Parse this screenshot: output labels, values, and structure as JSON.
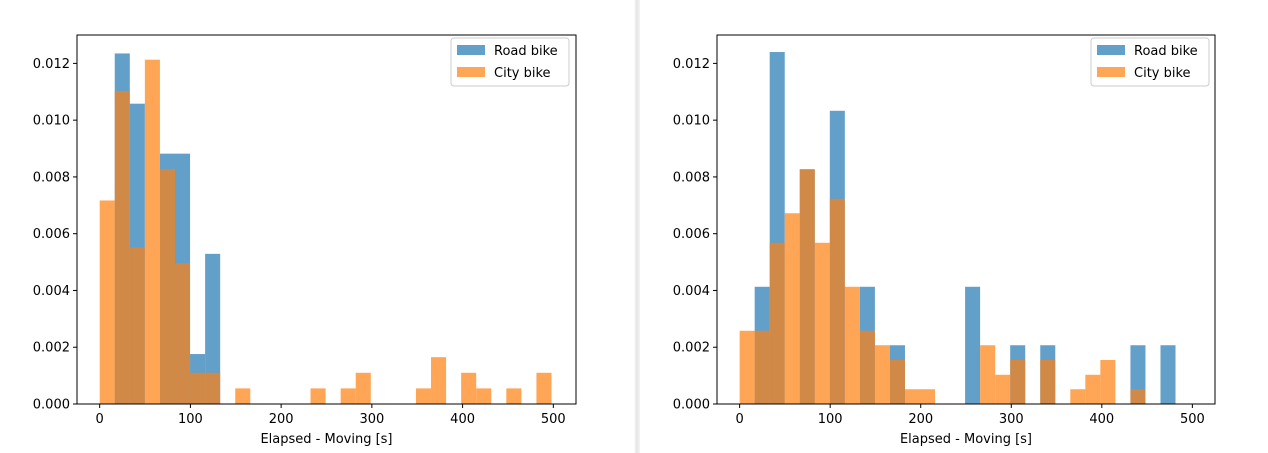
{
  "chart_data": [
    {
      "type": "bar",
      "kind": "histogram",
      "xlabel": "Elapsed - Moving [s]",
      "ylabel": "",
      "xlim": [
        -25,
        525
      ],
      "ylim": [
        0,
        0.013
      ],
      "xticks": [
        0,
        100,
        200,
        300,
        400,
        500
      ],
      "yticks": [
        0.0,
        0.002,
        0.004,
        0.006,
        0.008,
        0.01,
        0.012
      ],
      "bin_width": 16.6,
      "legend_position": "upper right",
      "series": [
        {
          "name": "Road bike",
          "color": "#1f77b4",
          "opacity": 0.7,
          "bins": [
            {
              "x0": 16.6,
              "y": 0.01235
            },
            {
              "x0": 33.2,
              "y": 0.01058
            },
            {
              "x0": 66.4,
              "y": 0.00882
            },
            {
              "x0": 83.0,
              "y": 0.00882
            },
            {
              "x0": 99.6,
              "y": 0.00176
            },
            {
              "x0": 116.2,
              "y": 0.00529
            }
          ]
        },
        {
          "name": "City bike",
          "color": "#ff7f0e",
          "opacity": 0.7,
          "bins": [
            {
              "x0": 0.0,
              "y": 0.00717
            },
            {
              "x0": 16.6,
              "y": 0.01103
            },
            {
              "x0": 33.2,
              "y": 0.00552
            },
            {
              "x0": 49.8,
              "y": 0.01213
            },
            {
              "x0": 66.4,
              "y": 0.00827
            },
            {
              "x0": 83.0,
              "y": 0.00496
            },
            {
              "x0": 99.6,
              "y": 0.0011
            },
            {
              "x0": 116.2,
              "y": 0.0011
            },
            {
              "x0": 149.4,
              "y": 0.00055
            },
            {
              "x0": 232.4,
              "y": 0.00055
            },
            {
              "x0": 265.6,
              "y": 0.00055
            },
            {
              "x0": 282.2,
              "y": 0.0011
            },
            {
              "x0": 348.6,
              "y": 0.00055
            },
            {
              "x0": 365.2,
              "y": 0.00165
            },
            {
              "x0": 398.4,
              "y": 0.0011
            },
            {
              "x0": 415.0,
              "y": 0.00055
            },
            {
              "x0": 448.2,
              "y": 0.00055
            },
            {
              "x0": 481.4,
              "y": 0.0011
            }
          ]
        }
      ]
    },
    {
      "type": "bar",
      "kind": "histogram",
      "xlabel": "Elapsed - Moving [s]",
      "ylabel": "",
      "xlim": [
        -25,
        525
      ],
      "ylim": [
        0,
        0.013
      ],
      "xticks": [
        0,
        100,
        200,
        300,
        400,
        500
      ],
      "yticks": [
        0.0,
        0.002,
        0.004,
        0.006,
        0.008,
        0.01,
        0.012
      ],
      "bin_width": 16.6,
      "legend_position": "upper right",
      "series": [
        {
          "name": "Road bike",
          "color": "#1f77b4",
          "opacity": 0.7,
          "bins": [
            {
              "x0": 16.6,
              "y": 0.00413
            },
            {
              "x0": 33.2,
              "y": 0.0124
            },
            {
              "x0": 66.4,
              "y": 0.00827
            },
            {
              "x0": 99.6,
              "y": 0.01033
            },
            {
              "x0": 132.8,
              "y": 0.00413
            },
            {
              "x0": 166.0,
              "y": 0.00207
            },
            {
              "x0": 249.0,
              "y": 0.00413
            },
            {
              "x0": 298.8,
              "y": 0.00207
            },
            {
              "x0": 332.0,
              "y": 0.00207
            },
            {
              "x0": 431.6,
              "y": 0.00207
            },
            {
              "x0": 464.8,
              "y": 0.00207
            }
          ]
        },
        {
          "name": "City bike",
          "color": "#ff7f0e",
          "opacity": 0.7,
          "bins": [
            {
              "x0": 0.0,
              "y": 0.00258
            },
            {
              "x0": 16.6,
              "y": 0.00258
            },
            {
              "x0": 33.2,
              "y": 0.00568
            },
            {
              "x0": 49.8,
              "y": 0.00672
            },
            {
              "x0": 66.4,
              "y": 0.00827
            },
            {
              "x0": 83.0,
              "y": 0.00568
            },
            {
              "x0": 99.6,
              "y": 0.00723
            },
            {
              "x0": 116.2,
              "y": 0.00413
            },
            {
              "x0": 132.8,
              "y": 0.00258
            },
            {
              "x0": 149.4,
              "y": 0.00207
            },
            {
              "x0": 166.0,
              "y": 0.00155
            },
            {
              "x0": 182.6,
              "y": 0.00052
            },
            {
              "x0": 199.2,
              "y": 0.00052
            },
            {
              "x0": 265.6,
              "y": 0.00207
            },
            {
              "x0": 282.2,
              "y": 0.00103
            },
            {
              "x0": 298.8,
              "y": 0.00155
            },
            {
              "x0": 332.0,
              "y": 0.00155
            },
            {
              "x0": 365.2,
              "y": 0.00052
            },
            {
              "x0": 381.8,
              "y": 0.00103
            },
            {
              "x0": 398.4,
              "y": 0.00155
            },
            {
              "x0": 431.6,
              "y": 0.00052
            }
          ]
        }
      ]
    }
  ]
}
